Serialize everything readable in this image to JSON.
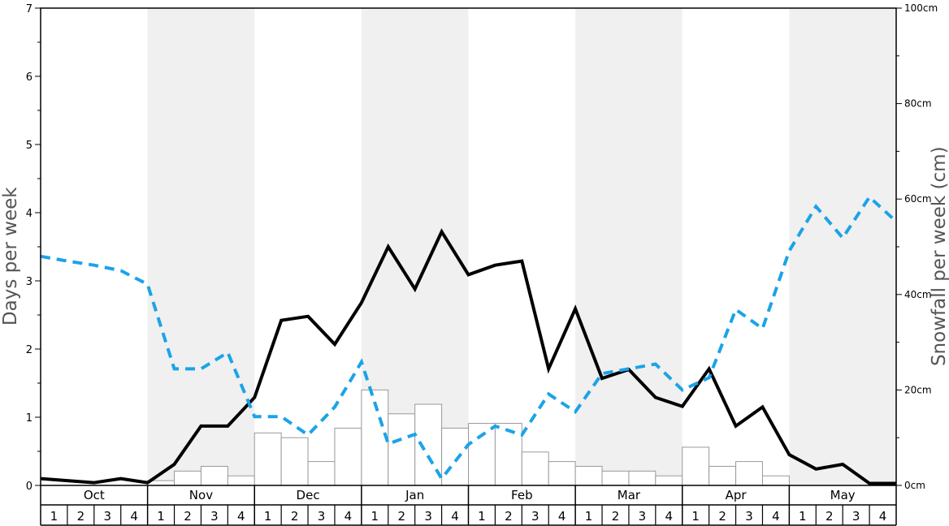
{
  "chart_data": {
    "type": "bar",
    "title": "",
    "ylabel_left": "Days per week",
    "ylabel_right": "Snowfall per week (cm)",
    "ylim_left": [
      0,
      7
    ],
    "ylim_right": [
      0,
      100
    ],
    "left_ticks": [
      "0",
      "1",
      "2",
      "3",
      "4",
      "5",
      "6",
      "7"
    ],
    "right_ticks": [
      "0cm",
      "20cm",
      "40cm",
      "60cm",
      "80cm",
      "100cm"
    ],
    "months": [
      "Oct",
      "Nov",
      "Dec",
      "Jan",
      "Feb",
      "Mar",
      "Apr",
      "May"
    ],
    "weeks": [
      "1",
      "2",
      "3",
      "4"
    ],
    "shaded_months": [
      "Nov",
      "Jan",
      "Mar",
      "May"
    ],
    "series": [
      {
        "kind": "bar",
        "axis": "right",
        "color": "#ffffff",
        "edge_color": "#999999",
        "values": [
          0,
          0,
          0,
          0,
          1,
          3,
          4,
          2,
          11,
          10,
          5,
          12,
          20,
          15,
          17,
          12,
          13,
          13,
          7,
          5,
          4,
          3,
          3,
          2,
          8,
          4,
          5,
          2,
          0,
          0,
          0,
          0
        ]
      },
      {
        "kind": "line",
        "axis": "left",
        "color": "#000000",
        "style": "solid",
        "values": [
          0.1,
          0.07,
          0.04,
          0.1,
          0.04,
          0.31,
          0.87,
          0.87,
          1.29,
          2.42,
          2.48,
          2.07,
          2.68,
          3.5,
          2.88,
          3.72,
          3.09,
          3.23,
          3.29,
          1.71,
          2.59,
          1.57,
          1.7,
          1.29,
          1.16,
          1.71,
          0.87,
          1.15,
          0.45,
          0.24,
          0.31,
          0.03,
          0.03
        ]
      },
      {
        "kind": "line",
        "axis": "left",
        "color": "#1ba3e8",
        "style": "dashed",
        "values": [
          3.36,
          3.29,
          3.23,
          3.15,
          2.95,
          1.71,
          1.71,
          1.95,
          1.01,
          1.01,
          0.74,
          1.15,
          1.81,
          0.61,
          0.75,
          0.1,
          0.6,
          0.87,
          0.74,
          1.34,
          1.08,
          1.64,
          1.71,
          1.78,
          1.4,
          1.58,
          2.58,
          2.3,
          3.44,
          4.09,
          3.63,
          4.23,
          3.87
        ]
      }
    ]
  },
  "colors": {
    "shade": "#f0f0f0",
    "grid_border": "#000000",
    "bar_fill": "#ffffff",
    "bar_edge": "#999999",
    "days_line": "#000000",
    "snow_line": "#1ba3e8",
    "axis_title": "#555555"
  }
}
